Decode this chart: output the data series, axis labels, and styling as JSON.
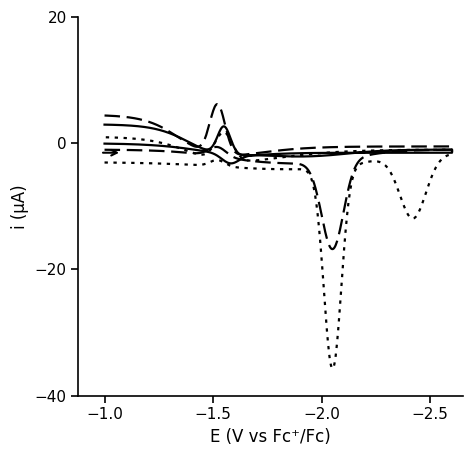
{
  "xlim": [
    -2.65,
    -0.88
  ],
  "ylim": [
    -40,
    20
  ],
  "xlabel": "E (V vs Fc⁺/Fc)",
  "ylabel": "i (μA)",
  "xticks": [
    -2.5,
    -2.0,
    -1.5,
    -1.0
  ],
  "yticks": [
    -40,
    -20,
    0,
    20
  ],
  "background_color": "#ffffff",
  "line_color": "#000000",
  "linewidth": 1.6
}
